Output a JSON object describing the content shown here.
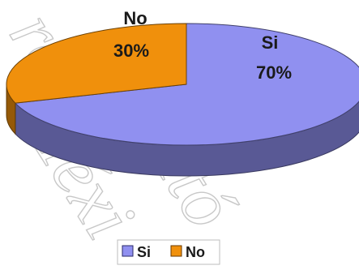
{
  "chart_data": {
    "type": "pie",
    "style": "3d",
    "title": "",
    "series": [
      {
        "categories": [
          "Si",
          "No"
        ],
        "values": [
          70,
          30
        ],
        "value_labels": [
          "70%",
          "30%"
        ],
        "colors": [
          "#9090f0",
          "#f0900c"
        ]
      }
    ],
    "legend": {
      "placement": "bottom",
      "entries": [
        "Si",
        "No"
      ]
    }
  },
  "watermark": {
    "text": "rez Autó México",
    "lines": [
      "rez",
      "Autó",
      "Méxi"
    ]
  }
}
